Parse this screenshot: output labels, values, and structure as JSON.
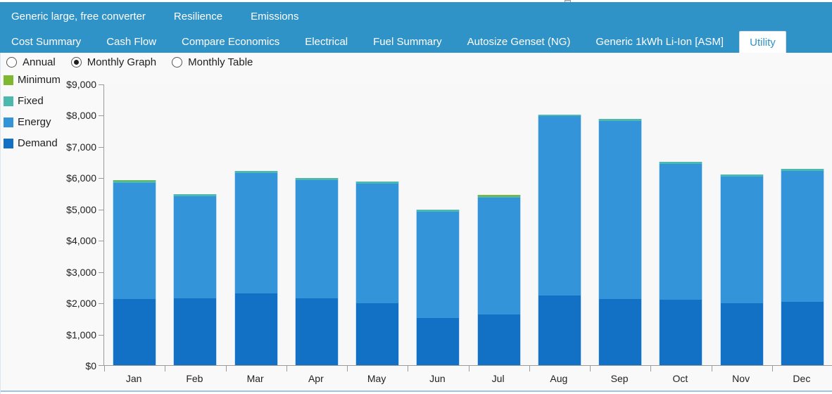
{
  "colors": {
    "tab_bar": "#3093C7",
    "selected_tab_text": "#3093C7",
    "axis": "#9B9B9B",
    "content_background": "#F9F9F9",
    "demand": "#1271C4",
    "energy": "#3494D9",
    "fixed": "#4DB8AE",
    "minimum": "#7DB82E"
  },
  "tab_bar": {
    "row1": [
      {
        "label": "Generic large, free converter",
        "selected": false
      },
      {
        "label": "Resilience",
        "selected": false
      },
      {
        "label": "Emissions",
        "selected": false
      }
    ],
    "row2": [
      {
        "label": "Cost Summary",
        "selected": false
      },
      {
        "label": "Cash Flow",
        "selected": false
      },
      {
        "label": "Compare Economics",
        "selected": false
      },
      {
        "label": "Electrical",
        "selected": false
      },
      {
        "label": "Fuel Summary",
        "selected": false
      },
      {
        "label": "Autosize Genset (NG)",
        "selected": false
      },
      {
        "label": "Generic 1kWh Li-Ion [ASM]",
        "selected": false
      },
      {
        "label": "Utility",
        "selected": true
      }
    ]
  },
  "view_options": [
    {
      "label": "Annual",
      "selected": false
    },
    {
      "label": "Monthly Graph",
      "selected": true
    },
    {
      "label": "Monthly Table",
      "selected": false
    }
  ],
  "legend": [
    {
      "label": "Minimum",
      "color": "#7DB82E"
    },
    {
      "label": "Fixed",
      "color": "#4DB8AE"
    },
    {
      "label": "Energy",
      "color": "#3494D9"
    },
    {
      "label": "Demand",
      "color": "#1271C4"
    }
  ],
  "chart_data": {
    "type": "bar",
    "stacked": true,
    "categories": [
      "Jan",
      "Feb",
      "Mar",
      "Apr",
      "May",
      "Jun",
      "Jul",
      "Aug",
      "Sep",
      "Oct",
      "Nov",
      "Dec"
    ],
    "series": [
      {
        "name": "Demand",
        "color": "#1271C4",
        "values": [
          2120,
          2130,
          2300,
          2130,
          1990,
          1510,
          1630,
          2230,
          2120,
          2100,
          1990,
          2030
        ]
      },
      {
        "name": "Energy",
        "color": "#3494D9",
        "values": [
          3700,
          3280,
          3840,
          3790,
          3820,
          3400,
          3720,
          5730,
          5690,
          4330,
          4040,
          4180
        ]
      },
      {
        "name": "Fixed",
        "color": "#4DB8AE",
        "values": [
          70,
          60,
          70,
          70,
          60,
          60,
          60,
          60,
          60,
          70,
          60,
          60
        ]
      },
      {
        "name": "Minimum",
        "color": "#7DB82E",
        "values": [
          30,
          0,
          0,
          0,
          0,
          0,
          40,
          0,
          0,
          0,
          0,
          0
        ]
      }
    ],
    "totals": [
      5920,
      5470,
      6210,
      5990,
      5870,
      4970,
      5450,
      8020,
      7870,
      6500,
      6090,
      6270
    ],
    "y_ticks": [
      "$9,000",
      "$8,000",
      "$7,000",
      "$6,000",
      "$5,000",
      "$4,000",
      "$3,000",
      "$2,000",
      "$1,000",
      "$0"
    ],
    "ylim": [
      0,
      9000
    ],
    "grid": false,
    "legend_position": "left",
    "title": "",
    "xlabel": "",
    "ylabel": ""
  }
}
